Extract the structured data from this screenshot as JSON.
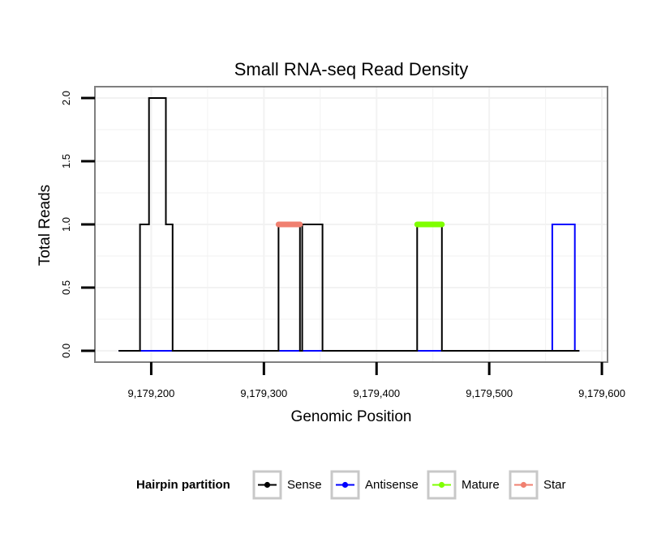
{
  "chart_data": {
    "type": "line",
    "title": "Small RNA-seq Read Density",
    "xlabel": "Genomic Position",
    "ylabel": "Total Reads",
    "xlim": [
      9179150,
      9179605
    ],
    "ylim": [
      -0.09,
      2.09
    ],
    "x_ticks": [
      9179200,
      9179300,
      9179400,
      9179500,
      9179600
    ],
    "x_tick_labels": [
      "9,179,200",
      "9,179,300",
      "9,179,400",
      "9,179,500",
      "9,179,600"
    ],
    "y_ticks": [
      0,
      0.5,
      1,
      1.5,
      2
    ],
    "y_tick_labels": [
      "0.0",
      "0.5",
      "1.0",
      "1.5",
      "2.0"
    ],
    "grid": true,
    "legend": {
      "title": "Hairpin partition",
      "placement": "bottom",
      "entries": [
        "Sense",
        "Antisense",
        "Mature",
        "Star"
      ]
    },
    "series": [
      {
        "name": "Sense",
        "color": "#000000",
        "x": [
          9179171,
          9179190,
          9179190,
          9179198,
          9179198,
          9179213,
          9179213,
          9179219,
          9179219,
          9179313,
          9179313,
          9179332,
          9179332,
          9179334,
          9179334,
          9179352,
          9179352,
          9179436,
          9179436,
          9179458,
          9179458,
          9179580
        ],
        "values": [
          0,
          0,
          1,
          1,
          2,
          2,
          1,
          1,
          0,
          0,
          1,
          1,
          0,
          0,
          1,
          1,
          0,
          0,
          1,
          1,
          0,
          0
        ]
      },
      {
        "name": "Antisense",
        "color": "#0000ff",
        "x": [
          9179171,
          9179556,
          9179556,
          9179576,
          9179576,
          9179580
        ],
        "values": [
          0,
          0,
          1,
          1,
          0,
          0
        ]
      },
      {
        "name": "Mature",
        "color": "#7fff00",
        "x": [
          9179436,
          9179458
        ],
        "values": [
          1,
          1
        ]
      },
      {
        "name": "Star",
        "color": "#f08070",
        "x": [
          9179313,
          9179332
        ],
        "values": [
          1,
          1
        ]
      }
    ]
  }
}
